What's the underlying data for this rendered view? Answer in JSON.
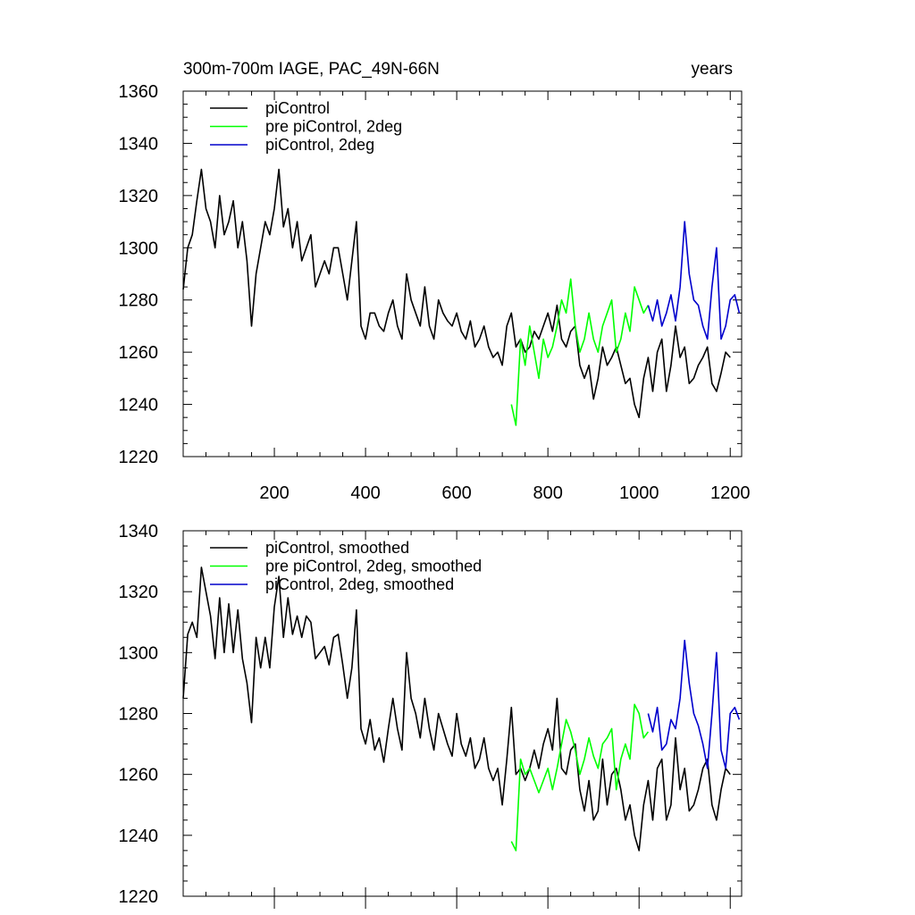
{
  "chart_data": [
    {
      "type": "line",
      "title": "300m-700m IAGE, PAC_49N-66N",
      "title_right": "years",
      "xlim": [
        0,
        1225
      ],
      "ylim": [
        1220,
        1360
      ],
      "xticks": [
        200,
        400,
        600,
        800,
        1000,
        1200
      ],
      "yticks": [
        1220,
        1240,
        1260,
        1280,
        1300,
        1320,
        1340,
        1360
      ],
      "legend_position": "top-left",
      "series": [
        {
          "name": "piControl",
          "color": "#000000",
          "x": [
            0,
            10,
            20,
            30,
            40,
            50,
            60,
            70,
            80,
            90,
            100,
            110,
            120,
            130,
            140,
            150,
            160,
            170,
            180,
            190,
            200,
            210,
            220,
            230,
            240,
            250,
            260,
            270,
            280,
            290,
            300,
            310,
            320,
            330,
            340,
            350,
            360,
            370,
            380,
            390,
            400,
            410,
            420,
            430,
            440,
            450,
            460,
            470,
            480,
            490,
            500,
            510,
            520,
            530,
            540,
            550,
            560,
            570,
            580,
            590,
            600,
            610,
            620,
            630,
            640,
            650,
            660,
            670,
            680,
            690,
            700,
            710,
            720,
            730,
            740,
            750,
            760,
            770,
            780,
            790,
            800,
            810,
            820,
            830,
            840,
            850,
            860,
            870,
            880,
            890,
            900,
            910,
            920,
            930,
            940,
            950,
            960,
            970,
            980,
            990,
            1000,
            1010,
            1020,
            1030,
            1040,
            1050,
            1060,
            1070,
            1080,
            1090,
            1100,
            1110,
            1120,
            1130,
            1140,
            1150,
            1160,
            1170,
            1180,
            1190,
            1200
          ],
          "y": [
            1284,
            1300,
            1305,
            1318,
            1330,
            1315,
            1310,
            1300,
            1320,
            1305,
            1310,
            1318,
            1300,
            1310,
            1295,
            1270,
            1290,
            1300,
            1310,
            1305,
            1315,
            1330,
            1308,
            1315,
            1300,
            1310,
            1295,
            1300,
            1305,
            1285,
            1290,
            1295,
            1290,
            1300,
            1300,
            1290,
            1280,
            1295,
            1310,
            1270,
            1265,
            1275,
            1275,
            1270,
            1268,
            1275,
            1280,
            1270,
            1265,
            1290,
            1280,
            1275,
            1270,
            1285,
            1270,
            1265,
            1280,
            1275,
            1272,
            1270,
            1275,
            1268,
            1265,
            1272,
            1262,
            1265,
            1270,
            1262,
            1258,
            1260,
            1255,
            1270,
            1275,
            1262,
            1265,
            1260,
            1262,
            1268,
            1265,
            1270,
            1275,
            1268,
            1278,
            1265,
            1262,
            1268,
            1270,
            1255,
            1250,
            1255,
            1242,
            1250,
            1262,
            1255,
            1258,
            1262,
            1255,
            1248,
            1250,
            1240,
            1235,
            1250,
            1258,
            1245,
            1260,
            1265,
            1245,
            1255,
            1270,
            1258,
            1262,
            1248,
            1250,
            1255,
            1258,
            1262,
            1248,
            1245,
            1252,
            1260,
            1258
          ]
        },
        {
          "name": "pre piControl, 2deg",
          "color": "#00ff00",
          "x": [
            720,
            730,
            740,
            750,
            760,
            770,
            780,
            790,
            800,
            810,
            820,
            830,
            840,
            850,
            860,
            870,
            880,
            890,
            900,
            910,
            920,
            930,
            940,
            950,
            960,
            970,
            980,
            990,
            1000,
            1010,
            1020
          ],
          "y": [
            1240,
            1232,
            1265,
            1255,
            1270,
            1260,
            1250,
            1265,
            1258,
            1262,
            1270,
            1280,
            1275,
            1288,
            1270,
            1260,
            1265,
            1275,
            1265,
            1260,
            1270,
            1275,
            1280,
            1260,
            1265,
            1275,
            1268,
            1285,
            1280,
            1275,
            1278
          ]
        },
        {
          "name": "piControl, 2deg",
          "color": "#0000cc",
          "x": [
            1020,
            1030,
            1040,
            1050,
            1060,
            1070,
            1080,
            1090,
            1100,
            1110,
            1120,
            1130,
            1140,
            1150,
            1160,
            1170,
            1180,
            1190,
            1200,
            1210,
            1220
          ],
          "y": [
            1278,
            1272,
            1280,
            1270,
            1275,
            1282,
            1272,
            1285,
            1310,
            1290,
            1280,
            1278,
            1270,
            1265,
            1285,
            1300,
            1265,
            1270,
            1280,
            1282,
            1275
          ]
        }
      ]
    },
    {
      "type": "line",
      "xlim": [
        0,
        1225
      ],
      "ylim": [
        1220,
        1340
      ],
      "xticks": [
        200,
        400,
        600,
        800,
        1000,
        1200
      ],
      "yticks": [
        1220,
        1240,
        1260,
        1280,
        1300,
        1320,
        1340
      ],
      "legend_position": "top-left",
      "series": [
        {
          "name": "piControl, smoothed",
          "color": "#000000",
          "x": [
            0,
            10,
            20,
            30,
            40,
            50,
            60,
            70,
            80,
            90,
            100,
            110,
            120,
            130,
            140,
            150,
            160,
            170,
            180,
            190,
            200,
            210,
            220,
            230,
            240,
            250,
            260,
            270,
            280,
            290,
            300,
            310,
            320,
            330,
            340,
            350,
            360,
            370,
            380,
            390,
            400,
            410,
            420,
            430,
            440,
            450,
            460,
            470,
            480,
            490,
            500,
            510,
            520,
            530,
            540,
            550,
            560,
            570,
            580,
            590,
            600,
            610,
            620,
            630,
            640,
            650,
            660,
            670,
            680,
            690,
            700,
            710,
            720,
            730,
            740,
            750,
            760,
            770,
            780,
            790,
            800,
            810,
            820,
            830,
            840,
            850,
            860,
            870,
            880,
            890,
            900,
            910,
            920,
            930,
            940,
            950,
            960,
            970,
            980,
            990,
            1000,
            1010,
            1020,
            1030,
            1040,
            1050,
            1060,
            1070,
            1080,
            1090,
            1100,
            1110,
            1120,
            1130,
            1140,
            1150,
            1160,
            1170,
            1180,
            1190,
            1200
          ],
          "y": [
            1285,
            1306,
            1310,
            1305,
            1328,
            1320,
            1312,
            1298,
            1318,
            1300,
            1316,
            1300,
            1314,
            1298,
            1290,
            1277,
            1305,
            1295,
            1305,
            1295,
            1315,
            1325,
            1305,
            1318,
            1306,
            1312,
            1305,
            1312,
            1310,
            1298,
            1300,
            1302,
            1296,
            1305,
            1306,
            1296,
            1285,
            1295,
            1314,
            1275,
            1270,
            1278,
            1268,
            1272,
            1264,
            1275,
            1285,
            1275,
            1268,
            1300,
            1285,
            1280,
            1272,
            1285,
            1275,
            1268,
            1280,
            1275,
            1270,
            1266,
            1280,
            1270,
            1266,
            1272,
            1262,
            1265,
            1272,
            1262,
            1258,
            1262,
            1250,
            1265,
            1282,
            1260,
            1262,
            1258,
            1262,
            1268,
            1262,
            1270,
            1275,
            1268,
            1285,
            1262,
            1260,
            1268,
            1270,
            1255,
            1248,
            1258,
            1245,
            1248,
            1265,
            1250,
            1260,
            1262,
            1255,
            1245,
            1250,
            1240,
            1235,
            1250,
            1258,
            1245,
            1262,
            1265,
            1245,
            1250,
            1272,
            1255,
            1262,
            1248,
            1250,
            1255,
            1262,
            1265,
            1250,
            1245,
            1255,
            1262,
            1260
          ]
        },
        {
          "name": "pre piControl, 2deg, smoothed",
          "color": "#00ff00",
          "x": [
            720,
            730,
            740,
            750,
            760,
            770,
            780,
            790,
            800,
            810,
            820,
            830,
            840,
            850,
            860,
            870,
            880,
            890,
            900,
            910,
            920,
            930,
            940,
            950,
            960,
            970,
            980,
            990,
            1000,
            1010,
            1020
          ],
          "y": [
            1238,
            1235,
            1265,
            1260,
            1262,
            1258,
            1254,
            1258,
            1262,
            1255,
            1262,
            1270,
            1278,
            1274,
            1268,
            1260,
            1265,
            1272,
            1266,
            1262,
            1270,
            1272,
            1275,
            1255,
            1265,
            1270,
            1265,
            1283,
            1280,
            1272,
            1274
          ]
        },
        {
          "name": "piControl, 2deg, smoothed",
          "color": "#0000cc",
          "x": [
            1020,
            1030,
            1040,
            1050,
            1060,
            1070,
            1080,
            1090,
            1100,
            1110,
            1120,
            1130,
            1140,
            1150,
            1160,
            1170,
            1180,
            1190,
            1200,
            1210,
            1220
          ],
          "y": [
            1280,
            1274,
            1282,
            1268,
            1270,
            1278,
            1275,
            1285,
            1304,
            1290,
            1280,
            1276,
            1270,
            1262,
            1280,
            1300,
            1268,
            1262,
            1280,
            1282,
            1278
          ]
        }
      ]
    }
  ]
}
